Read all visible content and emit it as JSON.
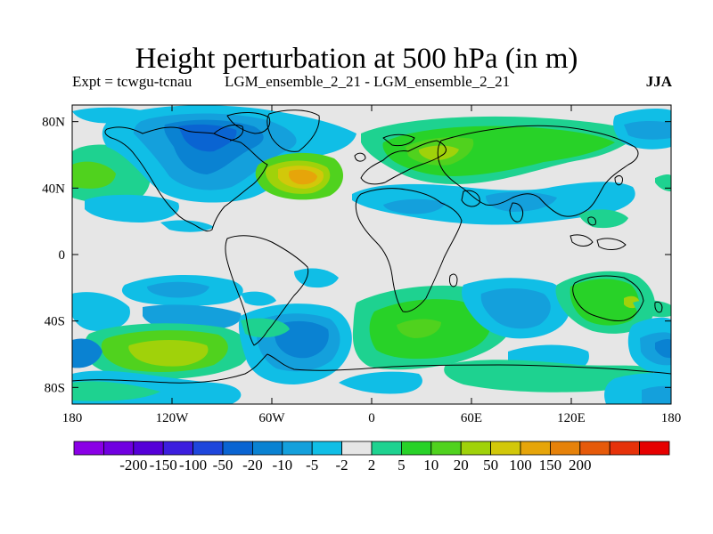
{
  "title": "Height perturbation at 500 hPa (in m)",
  "subtitle_left": "Expt = tcwgu-tcnau",
  "subtitle_center": "LGM_ensemble_2_21 - LGM_ensemble_2_21",
  "season": "JJA",
  "lat_ticks": [
    {
      "value": 80,
      "label": "80N"
    },
    {
      "value": 40,
      "label": "40N"
    },
    {
      "value": 0,
      "label": "0"
    },
    {
      "value": -40,
      "label": "40S"
    },
    {
      "value": -80,
      "label": "80S"
    }
  ],
  "lon_ticks": [
    {
      "value": -180,
      "label": "180"
    },
    {
      "value": -120,
      "label": "120W"
    },
    {
      "value": -60,
      "label": "60W"
    },
    {
      "value": 0,
      "label": "0"
    },
    {
      "value": 60,
      "label": "60E"
    },
    {
      "value": 120,
      "label": "120E"
    },
    {
      "value": 180,
      "label": "180"
    }
  ],
  "colorbar": {
    "colors": [
      "#8a00e6",
      "#7000e0",
      "#5500d8",
      "#3c1ede",
      "#1e46dc",
      "#0a64d2",
      "#0a82d2",
      "#14a0dc",
      "#10bee6",
      "#e6e6e6",
      "#1ed290",
      "#28d228",
      "#50d21e",
      "#a0d20a",
      "#d2c80a",
      "#e6a50a",
      "#e6820a",
      "#e65a0a",
      "#e6320a",
      "#e60000"
    ],
    "labels": [
      "-200",
      "-150",
      "-100",
      "-50",
      "-20",
      "-10",
      "-5",
      "-2",
      "2",
      "5",
      "10",
      "20",
      "50",
      "100",
      "150",
      "200"
    ]
  },
  "chart_data": {
    "type": "heatmap",
    "title": "Height perturbation at 500 hPa (in m)",
    "projection": "cylindrical-equidistant",
    "lon_range": [
      -180,
      180
    ],
    "lat_range": [
      -90,
      90
    ],
    "levels": [
      -200,
      -150,
      -100,
      -50,
      -20,
      -10,
      -5,
      -2,
      2,
      5,
      10,
      20,
      50,
      100,
      150,
      200
    ],
    "features": [
      {
        "name": "blue-north-canada",
        "lat_range": [
          45,
          80
        ],
        "lon_range": [
          -150,
          -60
        ],
        "value": -10
      },
      {
        "name": "orange-north-atlantic",
        "lat_range": [
          35,
          55
        ],
        "lon_range": [
          -60,
          -20
        ],
        "value": 50
      },
      {
        "name": "green-eurasia",
        "lat_range": [
          40,
          80
        ],
        "lon_range": [
          0,
          120
        ],
        "value": 10
      },
      {
        "name": "green-south-atlantic",
        "lat_range": [
          -80,
          -40
        ],
        "lon_range": [
          -10,
          50
        ],
        "value": 10
      },
      {
        "name": "yellow-south-pacific",
        "lat_range": [
          -75,
          -50
        ],
        "lon_range": [
          -150,
          -110
        ],
        "value": 20
      },
      {
        "name": "blue-south-america-south",
        "lat_range": [
          -75,
          -45
        ],
        "lon_range": [
          -60,
          -30
        ],
        "value": -10
      },
      {
        "name": "green-australia",
        "lat_range": [
          -45,
          -25
        ],
        "lon_range": [
          115,
          155
        ],
        "value": 10
      }
    ]
  }
}
